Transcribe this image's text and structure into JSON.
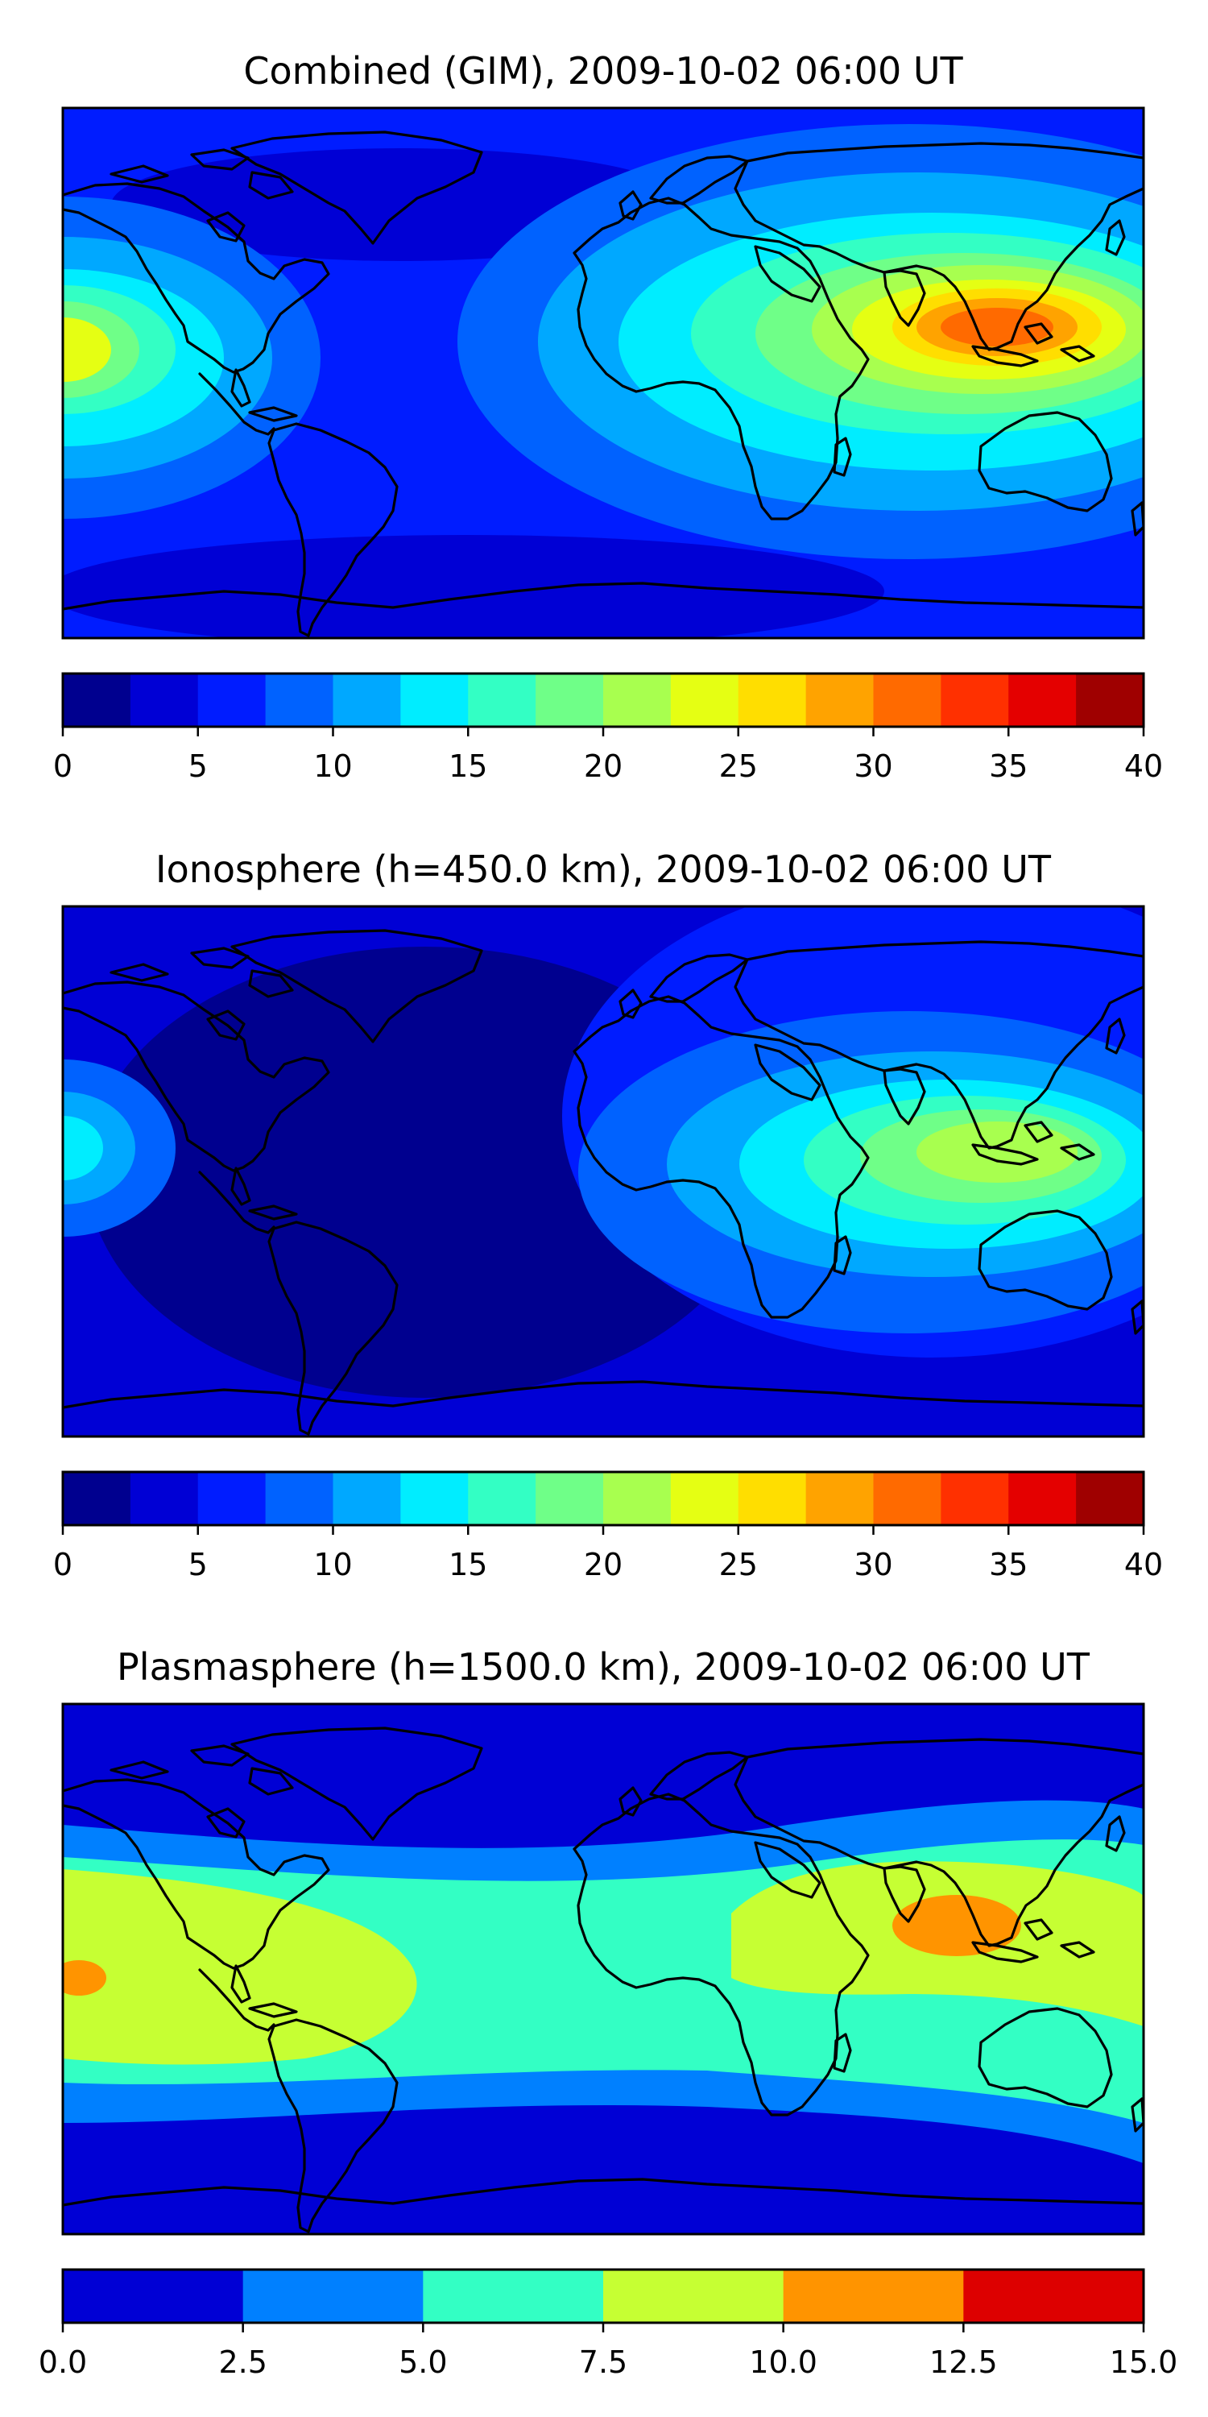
{
  "panels": [
    {
      "id": "combined",
      "title": "Combined (GIM), 2009-10-02 06:00 UT",
      "colorbar": {
        "ticks": [
          "0",
          "5",
          "10",
          "15",
          "20",
          "25",
          "30",
          "35",
          "40"
        ],
        "range": [
          0,
          40
        ],
        "step": 2.5,
        "colors": [
          "#00008f",
          "#0000d5",
          "#001cff",
          "#0062ff",
          "#00a8ff",
          "#00edff",
          "#33ffc4",
          "#6fff88",
          "#a8ff4f",
          "#e5ff13",
          "#ffde00",
          "#ffa300",
          "#ff6a00",
          "#ff3000",
          "#e40000",
          "#9f0000"
        ]
      }
    },
    {
      "id": "ionosphere",
      "title": "Ionosphere  (h=450.0 km), 2009-10-02 06:00 UT",
      "colorbar": {
        "ticks": [
          "0",
          "5",
          "10",
          "15",
          "20",
          "25",
          "30",
          "35",
          "40"
        ],
        "range": [
          0,
          40
        ],
        "step": 2.5,
        "colors": [
          "#00008f",
          "#0000d5",
          "#001cff",
          "#0062ff",
          "#00a8ff",
          "#00edff",
          "#33ffc4",
          "#6fff88",
          "#a8ff4f",
          "#e5ff13",
          "#ffde00",
          "#ffa300",
          "#ff6a00",
          "#ff3000",
          "#e40000",
          "#9f0000"
        ]
      }
    },
    {
      "id": "plasmasphere",
      "title": "Plasmasphere (h=1500.0 km), 2009-10-02 06:00 UT",
      "colorbar": {
        "ticks": [
          "0.0",
          "2.5",
          "5.0",
          "7.5",
          "10.0",
          "12.5",
          "15.0"
        ],
        "range": [
          0,
          15
        ],
        "step": 2.5,
        "colors": [
          "#0000d5",
          "#0080ff",
          "#33ffc4",
          "#c6ff33",
          "#ff9400",
          "#dd0000"
        ]
      }
    }
  ]
}
